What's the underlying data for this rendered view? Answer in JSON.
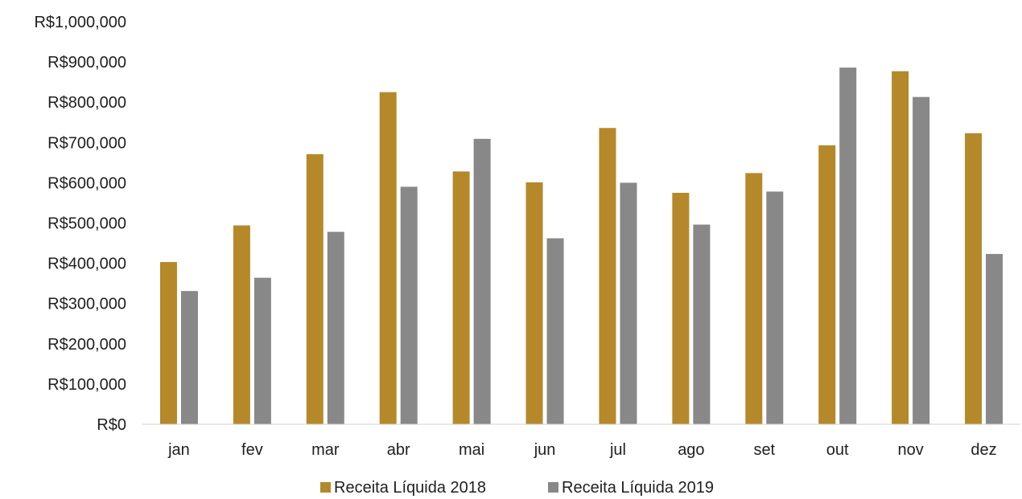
{
  "chart_data": {
    "type": "bar",
    "title": "",
    "xlabel": "",
    "ylabel": "",
    "categories": [
      "jan",
      "fev",
      "mar",
      "abr",
      "mai",
      "jun",
      "jul",
      "ago",
      "set",
      "out",
      "nov",
      "dez"
    ],
    "series": [
      {
        "name": "Receita Líquida 2018",
        "color": "#B5892A",
        "values": [
          403000,
          494000,
          671000,
          825000,
          628000,
          601000,
          736000,
          575000,
          624000,
          693000,
          877000,
          723000
        ]
      },
      {
        "name": "Receita Líquida 2019",
        "color": "#888888",
        "values": [
          331000,
          364000,
          478000,
          590000,
          709000,
          462000,
          600000,
          496000,
          578000,
          886000,
          813000,
          423000
        ]
      }
    ],
    "ylim": [
      0,
      1000000
    ],
    "y_ticks": [
      0,
      100000,
      200000,
      300000,
      400000,
      500000,
      600000,
      700000,
      800000,
      900000,
      1000000
    ],
    "y_tick_labels": [
      "R$0",
      "R$100,000",
      "R$200,000",
      "R$300,000",
      "R$400,000",
      "R$500,000",
      "R$600,000",
      "R$700,000",
      "R$800,000",
      "R$900,000",
      "R$1,000,000"
    ],
    "grid": false,
    "legend": "bottom-center"
  }
}
